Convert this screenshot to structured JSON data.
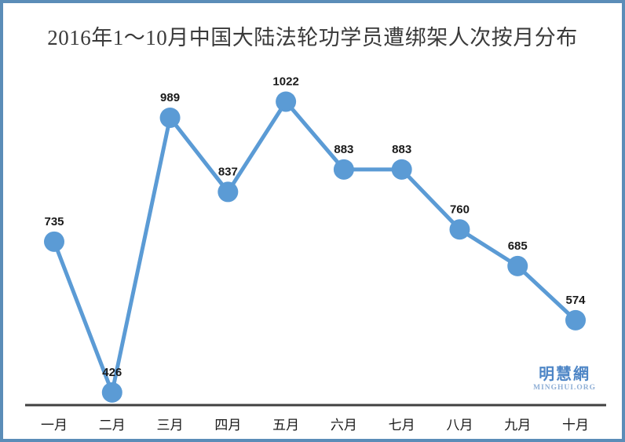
{
  "page": {
    "border_color": "#5b8db8",
    "background": "#ffffff"
  },
  "watermark": {
    "logo": "明慧網",
    "site": "MINGHUI.ORG",
    "logo_color": "#4e86c6",
    "site_color": "#8fafd6"
  },
  "chart_data": {
    "type": "line",
    "title": "2016年1～10月中国大陆法轮功学员遭绑架人次按月分布",
    "categories": [
      "一月",
      "二月",
      "三月",
      "四月",
      "五月",
      "六月",
      "七月",
      "八月",
      "九月",
      "十月"
    ],
    "values": [
      735,
      426,
      989,
      837,
      1022,
      883,
      883,
      760,
      685,
      574
    ],
    "series_color": "#5b9bd5",
    "label_color": "#1a1a1a",
    "axis_color": "#404040",
    "tick_label_color": "#1a1a1a",
    "title_color": "#3a3a3a",
    "ylim": [
      400,
      1100
    ],
    "xlabel": "",
    "ylabel": "",
    "grid": false,
    "legend": "none",
    "data_labels": true,
    "marker": "circle"
  }
}
